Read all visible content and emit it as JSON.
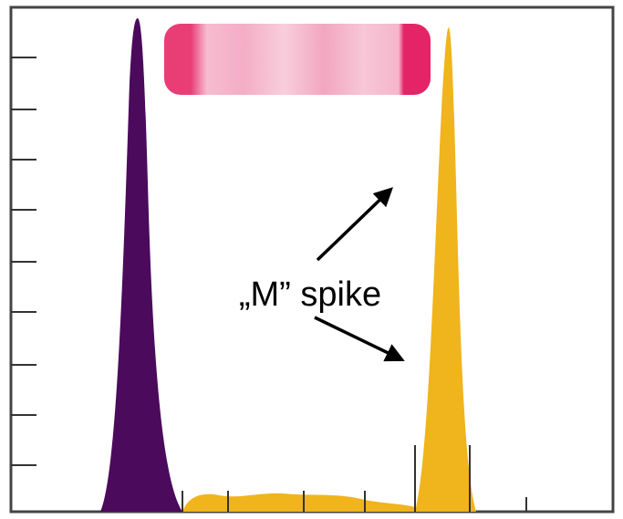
{
  "annotation": {
    "label": "„M” spike"
  }
}
